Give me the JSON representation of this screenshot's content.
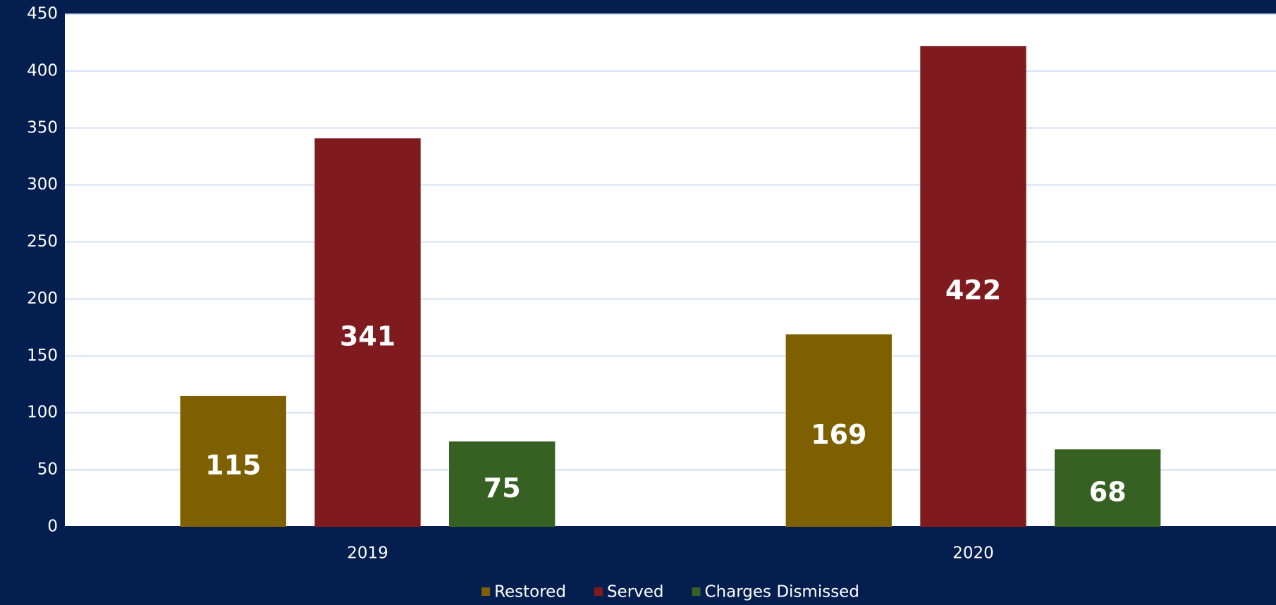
{
  "chart_data": {
    "type": "bar",
    "categories": [
      "2019",
      "2020"
    ],
    "series": [
      {
        "name": "Restored",
        "color": "#7f6000",
        "values": [
          115,
          169
        ]
      },
      {
        "name": "Served",
        "color": "#7f1a1e",
        "values": [
          341,
          422
        ]
      },
      {
        "name": "Charges Dismissed",
        "color": "#376023",
        "values": [
          75,
          68
        ]
      }
    ],
    "ylim": [
      0,
      450
    ],
    "yticks": [
      0,
      50,
      100,
      150,
      200,
      250,
      300,
      350,
      400,
      450
    ],
    "grid": true,
    "legend": "bottom"
  }
}
